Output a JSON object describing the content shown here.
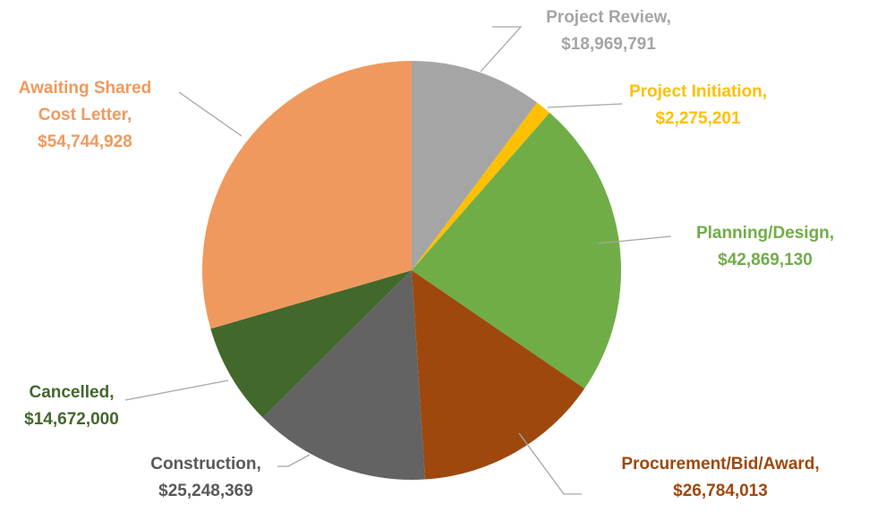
{
  "chart_data": {
    "type": "pie",
    "categories": [
      "Project Review,",
      "Project Initiation,",
      "Planning/Design,",
      "Procurement/Bid/Award,",
      "Construction,",
      "Cancelled,",
      "Awaiting Shared Cost Letter,"
    ],
    "values": [
      18969791,
      2275201,
      42869130,
      26784013,
      25248369,
      14672000,
      54744928
    ],
    "value_labels": [
      "$18,969,791",
      "$2,275,201",
      "$42,869,130",
      "$26,784,013",
      "$25,248,369",
      "$14,672,000",
      "$54,744,928"
    ],
    "colors": [
      "#a5a5a5",
      "#ffc000",
      "#70ad47",
      "#9e480e",
      "#636363",
      "#43682b",
      "#f0995e"
    ],
    "label_colors": [
      "#a5a5a5",
      "#ffc000",
      "#70ad47",
      "#9e480e",
      "#595959",
      "#43682b",
      "#f0995e"
    ]
  }
}
